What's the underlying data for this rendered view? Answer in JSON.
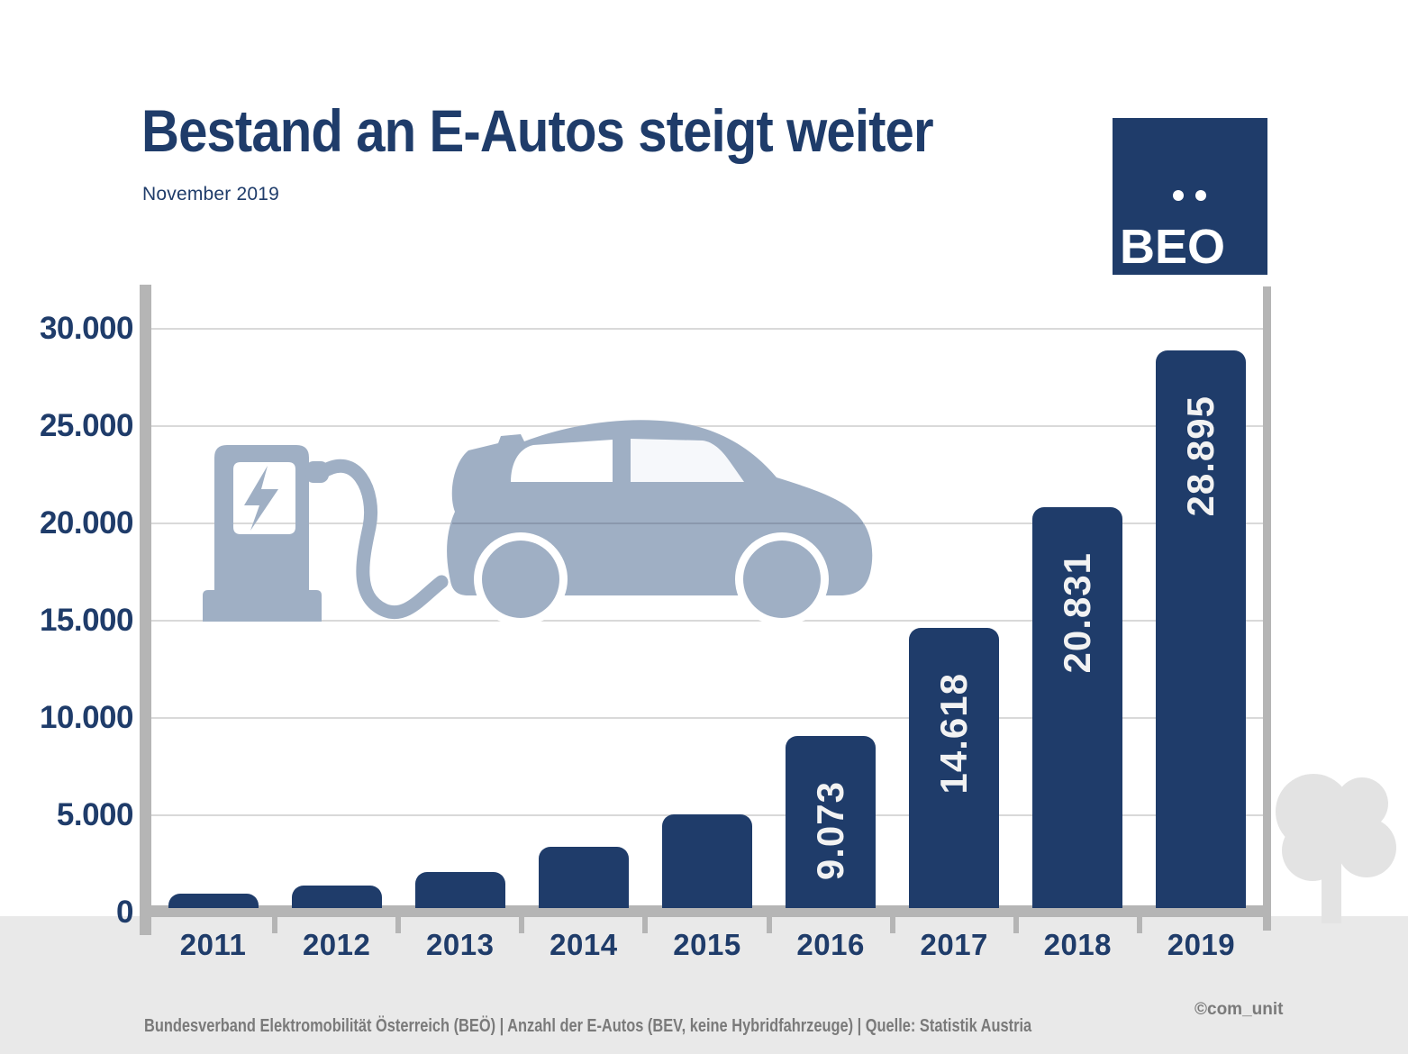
{
  "header": {
    "title": "Bestand an E-Autos steigt weiter",
    "subtitle": "November 2019"
  },
  "logo": {
    "text": "BEO",
    "display": "BEÖ",
    "background": "#1f3c6a",
    "dot_color": "#ffffff"
  },
  "chart_data": {
    "type": "bar",
    "title": "Bestand an E-Autos steigt weiter",
    "subtitle": "November 2019",
    "categories": [
      "2011",
      "2012",
      "2013",
      "2014",
      "2015",
      "2016",
      "2017",
      "2018",
      "2019"
    ],
    "values": [
      989,
      1389,
      2070,
      3386,
      5032,
      9073,
      14618,
      20831,
      28895
    ],
    "bar_labels": [
      "",
      "",
      "",
      "",
      "",
      "9.073",
      "14.618",
      "20.831",
      "28.895"
    ],
    "yticks": [
      0,
      5000,
      10000,
      15000,
      20000,
      25000,
      30000
    ],
    "ytick_labels": [
      "0",
      "5.000",
      "10.000",
      "15.000",
      "20.000",
      "25.000",
      "30.000"
    ],
    "ylim": [
      0,
      32000
    ],
    "xlabel": "",
    "ylabel": "",
    "grid": "horizontal",
    "legend_position": "none",
    "bar_color": "#1f3c6a",
    "bar_label_color": "#f2f2f2",
    "bar_label_rotation": -90
  },
  "illustration": {
    "color": "#9fafc4",
    "icons": [
      "charging-station-icon",
      "lightning-bolt-icon",
      "charging-cable-icon",
      "electric-car-icon",
      "tree-icon"
    ]
  },
  "footer": {
    "source_line": "Bundesverband Elektromobilität Österreich (BEÖ) | Anzahl der E-Autos (BEV, keine Hybridfahrzeuge) | Quelle: Statistik Austria",
    "credit": "©com_unit"
  },
  "colors": {
    "navy": "#1f3c6a",
    "steel_blue": "#9fafc4",
    "axis_gray": "#b5b5b5",
    "grid_gray": "#d9d9d9",
    "band_gray": "#e9e9e9",
    "footer_text_gray": "#7a7a7a"
  }
}
